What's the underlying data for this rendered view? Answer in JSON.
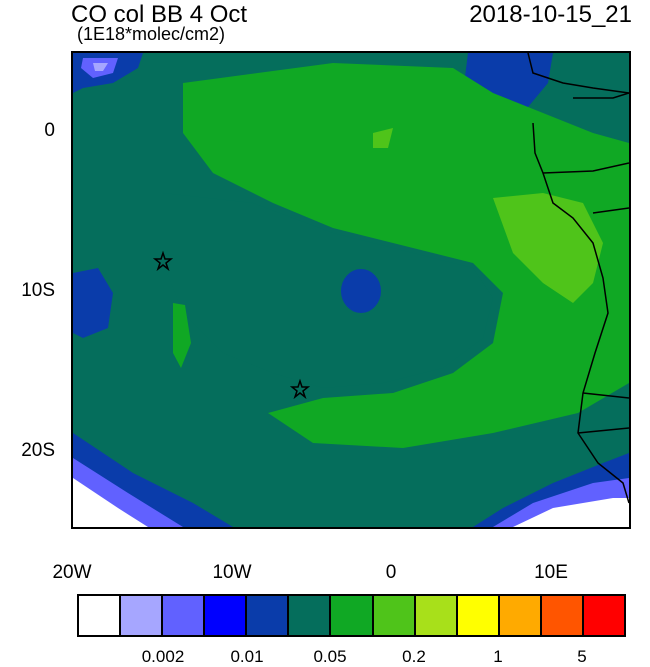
{
  "title_left": "CO col BB 4 Oct",
  "title_right": "2018-10-15_21",
  "units": "(1E18*molec/cm2)",
  "lat_labels": [
    "0",
    "10S",
    "20S"
  ],
  "lon_labels": [
    "20W",
    "10W",
    "0",
    "10E"
  ],
  "colorbar": {
    "colors": [
      "#ffffff",
      "#a6a6ff",
      "#6161ff",
      "#0000ff",
      "#0a3caa",
      "#056e5c",
      "#10a824",
      "#4fc41a",
      "#a8e01a",
      "#ffff00",
      "#ffaa00",
      "#ff5500",
      "#ff0000"
    ],
    "labels": [
      "0.002",
      "0.01",
      "0.05",
      "0.2",
      "1",
      "5"
    ]
  },
  "markers": [
    "station-star",
    "station-star"
  ],
  "colors": {
    "land_border": "#000000",
    "background": "#ffffff"
  }
}
